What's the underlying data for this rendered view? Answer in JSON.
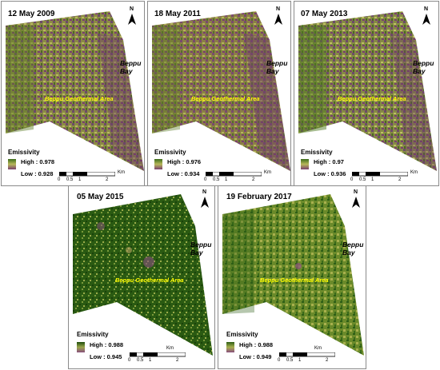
{
  "map_label": "Beppu Geothermal Area",
  "bay_label_line1": "Beppu",
  "bay_label_line2": "Bay",
  "north_label": "N",
  "legend_title": "Emissivity",
  "scale_ticks": [
    "0",
    "0.5",
    "1",
    "2"
  ],
  "scale_unit": "Km",
  "panels": [
    {
      "date": "12 May 2009",
      "high": "High : 0.978",
      "low": "Low : 0.928",
      "colors": {
        "high": "#3a6b1a",
        "mid": "#b8b85a",
        "low": "#7a3f6e"
      }
    },
    {
      "date": "18 May 2011",
      "high": "High : 0.976",
      "low": "Low : 0.934",
      "colors": {
        "high": "#3a6b1a",
        "mid": "#b8b85a",
        "low": "#7a3f6e"
      }
    },
    {
      "date": "07 May 2013",
      "high": "High : 0.97",
      "low": "Low : 0.936",
      "colors": {
        "high": "#3a6b1a",
        "mid": "#b8b85a",
        "low": "#7a3f6e"
      }
    },
    {
      "date": "05 May 2015",
      "high": "High : 0.988",
      "low": "Low : 0.945",
      "colors": {
        "high": "#1f4d0c",
        "mid": "#9aa64a",
        "low": "#8a4f7e"
      }
    },
    {
      "date": "19 February 2017",
      "high": "High : 0.988",
      "low": "Low : 0.949",
      "colors": {
        "high": "#2e5e16",
        "mid": "#a8b04e",
        "low": "#8a4f7e"
      }
    }
  ]
}
